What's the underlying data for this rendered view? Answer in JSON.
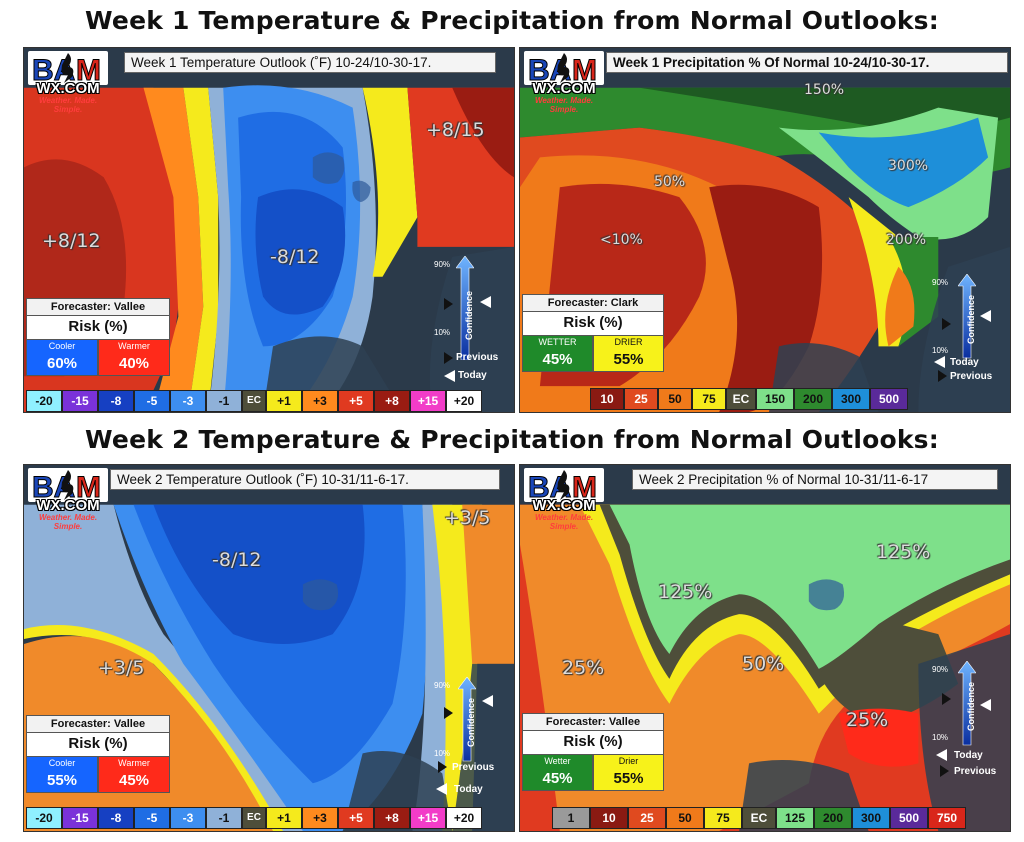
{
  "headings": {
    "week1": "Week 1 Temperature & Precipitation from Normal Outlooks:",
    "week2": "Week 2 Temperature & Precipitation from Normal Outlooks:"
  },
  "logo": {
    "bam": "BAM",
    "wx": "WX.COM",
    "tagline": "Weather. Made. Simple."
  },
  "colors": {
    "cooler": "#1565ff",
    "warmer": "#ff2a1a",
    "wetter": "#1f8a2a",
    "drier": "#f7f21a"
  },
  "panels": [
    {
      "title": "Week 1 Temperature Outlook (˚F) 10-24/10-30-17.",
      "labels": [
        "+8/12",
        "-8/12",
        "+8/15"
      ],
      "forecaster": "Forecaster: Vallee",
      "risk_title": "Risk (%)",
      "risk": [
        {
          "label": "Cooler",
          "value": "60%"
        },
        {
          "label": "Warmer",
          "value": "40%"
        }
      ],
      "legend": [
        "-20",
        "-15",
        "-8",
        "-5",
        "-3",
        "-1",
        "EC",
        "+1",
        "+3",
        "+5",
        "+8",
        "+15",
        "+20"
      ],
      "confidence": {
        "top": "90%",
        "bottom": "10%",
        "word": "Confidence",
        "previous": "Previous",
        "today": "Today"
      }
    },
    {
      "title": "Week 1 Precipitation % Of Normal 10-24/10-30-17.",
      "labels": [
        "150%",
        "50%",
        "<10%",
        "300%",
        "200%"
      ],
      "forecaster": "Forecaster: Clark",
      "risk_title": "Risk (%)",
      "risk": [
        {
          "label": "WETTER",
          "value": "45%"
        },
        {
          "label": "DRIER",
          "value": "55%"
        }
      ],
      "legend": [
        "10",
        "25",
        "50",
        "75",
        "EC",
        "150",
        "200",
        "300",
        "500"
      ],
      "confidence": {
        "top": "90%",
        "bottom": "10%",
        "word": "Confidence",
        "previous": "Previous",
        "today": "Today"
      }
    },
    {
      "title": "Week 2 Temperature Outlook (˚F) 10-31/11-6-17.",
      "labels": [
        "-8/12",
        "+3/5",
        "+3/5"
      ],
      "forecaster": "Forecaster: Vallee",
      "risk_title": "Risk (%)",
      "risk": [
        {
          "label": "Cooler",
          "value": "55%"
        },
        {
          "label": "Warmer",
          "value": "45%"
        }
      ],
      "legend": [
        "-20",
        "-15",
        "-8",
        "-5",
        "-3",
        "-1",
        "EC",
        "+1",
        "+3",
        "+5",
        "+8",
        "+15",
        "+20"
      ],
      "confidence": {
        "top": "90%",
        "bottom": "10%",
        "word": "Confidence",
        "previous": "Previous",
        "today": "Today"
      }
    },
    {
      "title": "Week 2 Precipitation % of Normal 10-31/11-6-17",
      "labels": [
        "125%",
        "125%",
        "25%",
        "50%",
        "25%"
      ],
      "forecaster": "Forecaster: Vallee",
      "risk_title": "Risk (%)",
      "risk": [
        {
          "label": "Wetter",
          "value": "45%"
        },
        {
          "label": "Drier",
          "value": "55%"
        }
      ],
      "legend": [
        "1",
        "10",
        "25",
        "50",
        "75",
        "EC",
        "125",
        "200",
        "300",
        "500",
        "750"
      ],
      "confidence": {
        "top": "90%",
        "bottom": "10%",
        "word": "Confidence",
        "previous": "Previous",
        "today": "Today"
      }
    }
  ]
}
